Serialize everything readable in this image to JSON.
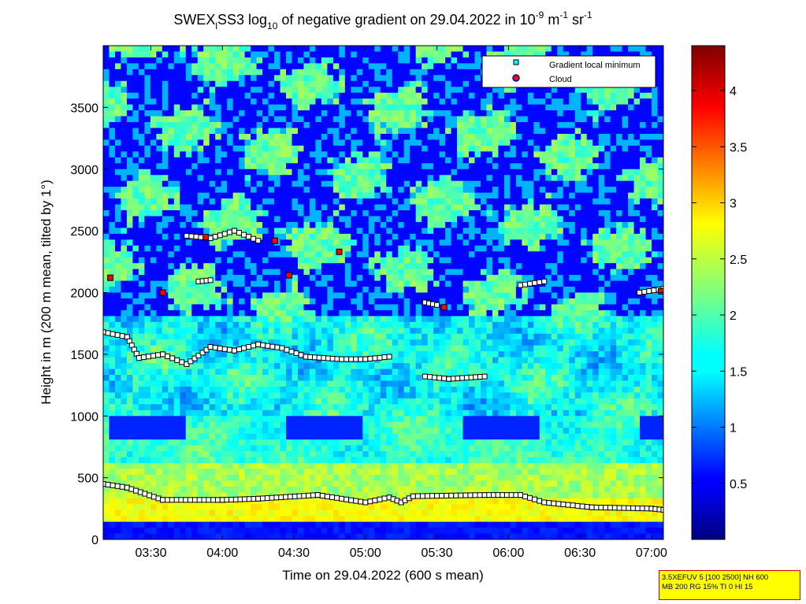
{
  "chart_data": {
    "type": "heatmap",
    "title": {
      "prefix": "SWEX",
      "sub1": "l",
      "mid": "SS3 log",
      "sub2": "10",
      "rest": " of negative gradient on 29.04.2022 in 10",
      "sup1": "-9",
      "unit1": " m",
      "sup2": "-1",
      "unit2": " sr",
      "sup3": "-1"
    },
    "xlabel": "Time on 29.04.2022 (600 s mean)",
    "ylabel": "Height in m (200 m mean, tilted by 1°)",
    "xlim": [
      "03:10",
      "07:05"
    ],
    "ylim": [
      0,
      4000
    ],
    "x_ticks": [
      "03:30",
      "04:00",
      "04:30",
      "05:00",
      "05:30",
      "06:00",
      "06:30",
      "07:00"
    ],
    "y_ticks": [
      "0",
      "500",
      "1000",
      "1500",
      "2000",
      "2500",
      "3000",
      "3500"
    ],
    "colorbar": {
      "min": 0,
      "max": 4.4,
      "ticks": [
        "0.5",
        "1",
        "1.5",
        "2",
        "2.5",
        "3",
        "3.5",
        "4"
      ],
      "colormap": "jet"
    },
    "legend": {
      "placement": "top-right",
      "entries": [
        {
          "label": "Gradient local minimum",
          "color": "#00ffff"
        },
        {
          "label": "Cloud",
          "color": "#ff0000"
        }
      ]
    },
    "gradient_minimum_layers": [
      {
        "name": "surface",
        "points": [
          [
            "03:10",
            450
          ],
          [
            "03:20",
            420
          ],
          [
            "03:35",
            320
          ],
          [
            "04:00",
            320
          ],
          [
            "04:15",
            330
          ],
          [
            "04:40",
            360
          ],
          [
            "05:00",
            300
          ],
          [
            "05:10",
            340
          ],
          [
            "05:15",
            300
          ],
          [
            "05:20",
            350
          ],
          [
            "05:50",
            360
          ],
          [
            "06:05",
            360
          ],
          [
            "06:15",
            300
          ],
          [
            "06:35",
            260
          ],
          [
            "07:00",
            250
          ],
          [
            "07:05",
            240
          ]
        ]
      },
      {
        "name": "layer-1600",
        "points": [
          [
            "03:10",
            1680
          ],
          [
            "03:20",
            1640
          ],
          [
            "03:25",
            1470
          ],
          [
            "03:35",
            1500
          ],
          [
            "03:45",
            1420
          ],
          [
            "03:55",
            1560
          ],
          [
            "04:05",
            1530
          ],
          [
            "04:15",
            1580
          ],
          [
            "04:25",
            1550
          ],
          [
            "04:35",
            1480
          ],
          [
            "04:50",
            1460
          ],
          [
            "05:00",
            1460
          ],
          [
            "05:10",
            1480
          ]
        ]
      },
      {
        "name": "layer-1300",
        "points": [
          [
            "05:25",
            1320
          ],
          [
            "05:35",
            1300
          ],
          [
            "05:50",
            1320
          ]
        ]
      },
      {
        "name": "layer-2450",
        "points": [
          [
            "03:45",
            2460
          ],
          [
            "03:55",
            2440
          ],
          [
            "04:05",
            2500
          ],
          [
            "04:15",
            2420
          ]
        ]
      },
      {
        "name": "layer-2100",
        "points": [
          [
            "03:50",
            2090
          ],
          [
            "03:55",
            2100
          ]
        ]
      },
      {
        "name": "layer-1900",
        "points": [
          [
            "05:25",
            1920
          ],
          [
            "05:30",
            1900
          ]
        ]
      },
      {
        "name": "layer-2050",
        "points": [
          [
            "06:05",
            2060
          ],
          [
            "06:15",
            2090
          ]
        ]
      },
      {
        "name": "layer-2000-end",
        "points": [
          [
            "06:55",
            2000
          ],
          [
            "07:05",
            2030
          ]
        ]
      }
    ],
    "clouds": [
      [
        "03:13",
        2120
      ],
      [
        "03:35",
        2000
      ],
      [
        "03:53",
        2450
      ],
      [
        "04:22",
        2420
      ],
      [
        "04:28",
        2140
      ],
      [
        "04:49",
        2330
      ],
      [
        "05:33",
        1880
      ],
      [
        "07:04",
        2010
      ]
    ],
    "field": {
      "cloud_base_low": 330,
      "high_band_top": 600,
      "mid_band_top": 1000,
      "description_note": ""
    }
  },
  "info_box": {
    "line1": "3.5XEFUV 5 [100 2500] NH 600",
    "line2": "MB 200 RG 15% TI 0 HI 15"
  }
}
